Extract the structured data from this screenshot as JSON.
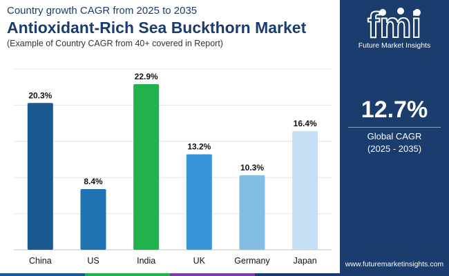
{
  "header": {
    "subtitle": "Country growth CAGR from 2025 to 2035",
    "title": "Antioxidant-Rich Sea Buckthorn Market",
    "note": "(Example of Country CAGR from 40+ covered in Report)"
  },
  "chart_data": {
    "type": "bar",
    "title": "Antioxidant-Rich Sea Buckthorn Market",
    "categories": [
      "China",
      "US",
      "India",
      "UK",
      "Germany",
      "Japan"
    ],
    "values": [
      20.3,
      8.4,
      22.9,
      13.2,
      10.3,
      16.4
    ],
    "value_labels": [
      "20.3%",
      "8.4%",
      "22.9%",
      "13.2%",
      "10.3%",
      "16.4%"
    ],
    "colors": [
      "#1b5a91",
      "#1f73b2",
      "#22b14c",
      "#3696d8",
      "#84bde3",
      "#c3dff1"
    ],
    "unit": "%",
    "ylim": [
      0,
      25
    ],
    "grid": true,
    "xlabel": "",
    "ylabel": ""
  },
  "sidebar": {
    "logo_text": "fmi",
    "brand": "Future Market Insights",
    "global_cagr": "12.7%",
    "global_label": "Global CAGR",
    "global_period": "(2025 - 2035)",
    "website": "www.futuremarketinsights.com"
  },
  "colors": {
    "navy": "#1a3d6d",
    "strip": [
      "#1b5a91",
      "#22b14c",
      "#7b3fa0",
      "#1a3d6d"
    ]
  }
}
